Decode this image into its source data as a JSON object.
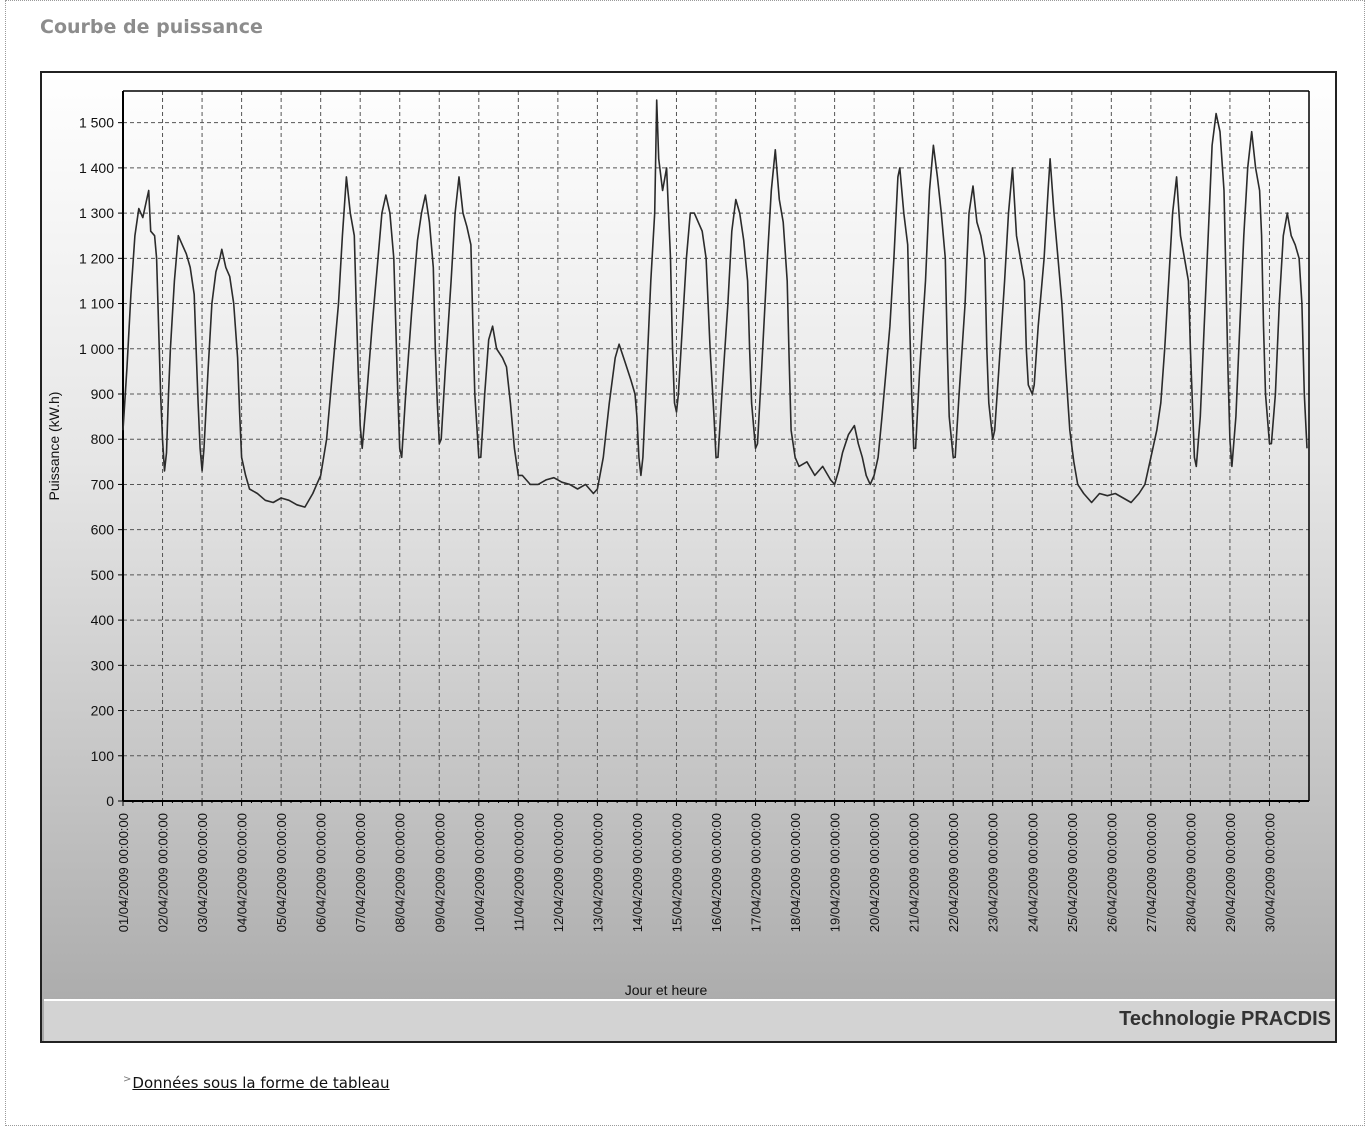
{
  "section_title": "Courbe de puissance",
  "brand": "Technologie PRACDIS",
  "table_link": "Données sous la forme de tableau",
  "chart_data": {
    "type": "line",
    "title": "",
    "xlabel": "Jour et heure",
    "ylabel": "Puissance (kW.h)",
    "ylim": [
      0,
      1570
    ],
    "yticks": [
      0,
      100,
      200,
      300,
      400,
      500,
      600,
      700,
      800,
      900,
      1000,
      1100,
      1200,
      1300,
      1400,
      1500
    ],
    "ytick_labels": [
      "0",
      "100",
      "200",
      "300",
      "400",
      "500",
      "600",
      "700",
      "800",
      "900",
      "1 000",
      "1 100",
      "1 200",
      "1 300",
      "1 400",
      "1 500"
    ],
    "x_categories": [
      "01/04/2009 00:00:00",
      "02/04/2009 00:00:00",
      "03/04/2009 00:00:00",
      "04/04/2009 00:00:00",
      "05/04/2009 00:00:00",
      "06/04/2009 00:00:00",
      "07/04/2009 00:00:00",
      "08/04/2009 00:00:00",
      "09/04/2009 00:00:00",
      "10/04/2009 00:00:00",
      "11/04/2009 00:00:00",
      "12/04/2009 00:00:00",
      "13/04/2009 00:00:00",
      "14/04/2009 00:00:00",
      "15/04/2009 00:00:00",
      "16/04/2009 00:00:00",
      "17/04/2009 00:00:00",
      "18/04/2009 00:00:00",
      "19/04/2009 00:00:00",
      "20/04/2009 00:00:00",
      "21/04/2009 00:00:00",
      "22/04/2009 00:00:00",
      "23/04/2009 00:00:00",
      "24/04/2009 00:00:00",
      "25/04/2009 00:00:00",
      "26/04/2009 00:00:00",
      "27/04/2009 00:00:00",
      "28/04/2009 00:00:00",
      "29/04/2009 00:00:00",
      "30/04/2009 00:00:00"
    ],
    "grid": true,
    "line_color": "#2b2b2b",
    "series": [
      {
        "values": [
          [
            0.0,
            820
          ],
          [
            0.1,
            960
          ],
          [
            0.2,
            1120
          ],
          [
            0.3,
            1250
          ],
          [
            0.4,
            1310
          ],
          [
            0.5,
            1290
          ],
          [
            0.6,
            1330
          ],
          [
            0.65,
            1350
          ],
          [
            0.7,
            1260
          ],
          [
            0.8,
            1250
          ],
          [
            0.85,
            1200
          ],
          [
            0.9,
            1050
          ],
          [
            0.95,
            900
          ],
          [
            1.0,
            800
          ],
          [
            1.05,
            730
          ],
          [
            1.1,
            770
          ],
          [
            1.15,
            900
          ],
          [
            1.2,
            1000
          ],
          [
            1.3,
            1150
          ],
          [
            1.4,
            1250
          ],
          [
            1.5,
            1230
          ],
          [
            1.6,
            1210
          ],
          [
            1.7,
            1180
          ],
          [
            1.8,
            1120
          ],
          [
            1.85,
            1000
          ],
          [
            1.9,
            880
          ],
          [
            1.95,
            780
          ],
          [
            2.0,
            730
          ],
          [
            2.05,
            780
          ],
          [
            2.15,
            950
          ],
          [
            2.25,
            1100
          ],
          [
            2.35,
            1170
          ],
          [
            2.45,
            1200
          ],
          [
            2.5,
            1220
          ],
          [
            2.6,
            1180
          ],
          [
            2.7,
            1160
          ],
          [
            2.8,
            1100
          ],
          [
            2.9,
            980
          ],
          [
            2.95,
            860
          ],
          [
            3.0,
            760
          ],
          [
            3.1,
            720
          ],
          [
            3.2,
            690
          ],
          [
            3.4,
            680
          ],
          [
            3.6,
            665
          ],
          [
            3.8,
            660
          ],
          [
            4.0,
            670
          ],
          [
            4.2,
            665
          ],
          [
            4.4,
            655
          ],
          [
            4.6,
            650
          ],
          [
            4.8,
            680
          ],
          [
            4.9,
            700
          ],
          [
            5.0,
            720
          ],
          [
            5.15,
            800
          ],
          [
            5.3,
            950
          ],
          [
            5.45,
            1100
          ],
          [
            5.55,
            1250
          ],
          [
            5.65,
            1380
          ],
          [
            5.75,
            1300
          ],
          [
            5.85,
            1250
          ],
          [
            5.9,
            1100
          ],
          [
            5.95,
            950
          ],
          [
            6.0,
            830
          ],
          [
            6.05,
            780
          ],
          [
            6.15,
            880
          ],
          [
            6.3,
            1050
          ],
          [
            6.45,
            1200
          ],
          [
            6.55,
            1300
          ],
          [
            6.65,
            1340
          ],
          [
            6.75,
            1300
          ],
          [
            6.85,
            1200
          ],
          [
            6.9,
            1050
          ],
          [
            6.95,
            900
          ],
          [
            7.0,
            780
          ],
          [
            7.05,
            760
          ],
          [
            7.15,
            900
          ],
          [
            7.3,
            1080
          ],
          [
            7.45,
            1240
          ],
          [
            7.55,
            1300
          ],
          [
            7.65,
            1340
          ],
          [
            7.75,
            1280
          ],
          [
            7.85,
            1180
          ],
          [
            7.9,
            1000
          ],
          [
            7.95,
            880
          ],
          [
            8.0,
            790
          ],
          [
            8.05,
            800
          ],
          [
            8.15,
            950
          ],
          [
            8.3,
            1150
          ],
          [
            8.4,
            1300
          ],
          [
            8.5,
            1380
          ],
          [
            8.6,
            1300
          ],
          [
            8.7,
            1270
          ],
          [
            8.8,
            1230
          ],
          [
            8.85,
            1050
          ],
          [
            8.9,
            900
          ],
          [
            9.0,
            760
          ],
          [
            9.05,
            760
          ],
          [
            9.15,
            900
          ],
          [
            9.25,
            1020
          ],
          [
            9.35,
            1050
          ],
          [
            9.45,
            1000
          ],
          [
            9.6,
            980
          ],
          [
            9.7,
            960
          ],
          [
            9.8,
            880
          ],
          [
            9.9,
            780
          ],
          [
            10.0,
            720
          ],
          [
            10.1,
            720
          ],
          [
            10.3,
            700
          ],
          [
            10.5,
            700
          ],
          [
            10.7,
            710
          ],
          [
            10.9,
            715
          ],
          [
            11.1,
            705
          ],
          [
            11.3,
            700
          ],
          [
            11.5,
            690
          ],
          [
            11.7,
            700
          ],
          [
            11.9,
            680
          ],
          [
            12.0,
            690
          ],
          [
            12.15,
            760
          ],
          [
            12.3,
            880
          ],
          [
            12.45,
            980
          ],
          [
            12.55,
            1010
          ],
          [
            12.7,
            970
          ],
          [
            12.85,
            930
          ],
          [
            12.95,
            900
          ],
          [
            13.0,
            850
          ],
          [
            13.05,
            760
          ],
          [
            13.1,
            720
          ],
          [
            13.15,
            760
          ],
          [
            13.25,
            950
          ],
          [
            13.35,
            1150
          ],
          [
            13.45,
            1300
          ],
          [
            13.5,
            1550
          ],
          [
            13.55,
            1420
          ],
          [
            13.65,
            1350
          ],
          [
            13.75,
            1400
          ],
          [
            13.85,
            1200
          ],
          [
            13.9,
            1000
          ],
          [
            13.95,
            880
          ],
          [
            14.0,
            860
          ],
          [
            14.05,
            900
          ],
          [
            14.15,
            1050
          ],
          [
            14.25,
            1200
          ],
          [
            14.35,
            1300
          ],
          [
            14.45,
            1300
          ],
          [
            14.55,
            1280
          ],
          [
            14.65,
            1260
          ],
          [
            14.75,
            1200
          ],
          [
            14.85,
            1000
          ],
          [
            14.95,
            850
          ],
          [
            15.0,
            760
          ],
          [
            15.05,
            760
          ],
          [
            15.15,
            900
          ],
          [
            15.3,
            1100
          ],
          [
            15.4,
            1260
          ],
          [
            15.5,
            1330
          ],
          [
            15.6,
            1300
          ],
          [
            15.7,
            1240
          ],
          [
            15.8,
            1150
          ],
          [
            15.85,
            1000
          ],
          [
            15.9,
            880
          ],
          [
            16.0,
            780
          ],
          [
            16.05,
            790
          ],
          [
            16.15,
            950
          ],
          [
            16.3,
            1200
          ],
          [
            16.4,
            1350
          ],
          [
            16.5,
            1440
          ],
          [
            16.6,
            1330
          ],
          [
            16.7,
            1280
          ],
          [
            16.8,
            1150
          ],
          [
            16.85,
            980
          ],
          [
            16.9,
            820
          ],
          [
            17.0,
            760
          ],
          [
            17.1,
            740
          ],
          [
            17.3,
            750
          ],
          [
            17.5,
            720
          ],
          [
            17.7,
            740
          ],
          [
            17.9,
            710
          ],
          [
            18.0,
            700
          ],
          [
            18.1,
            730
          ],
          [
            18.2,
            770
          ],
          [
            18.35,
            810
          ],
          [
            18.5,
            830
          ],
          [
            18.6,
            790
          ],
          [
            18.7,
            760
          ],
          [
            18.8,
            720
          ],
          [
            18.9,
            700
          ],
          [
            19.0,
            720
          ],
          [
            19.1,
            760
          ],
          [
            19.2,
            850
          ],
          [
            19.3,
            950
          ],
          [
            19.4,
            1050
          ],
          [
            19.5,
            1200
          ],
          [
            19.6,
            1380
          ],
          [
            19.65,
            1400
          ],
          [
            19.75,
            1300
          ],
          [
            19.85,
            1230
          ],
          [
            19.9,
            1050
          ],
          [
            19.95,
            900
          ],
          [
            20.0,
            780
          ],
          [
            20.05,
            780
          ],
          [
            20.15,
            950
          ],
          [
            20.3,
            1150
          ],
          [
            20.4,
            1350
          ],
          [
            20.5,
            1450
          ],
          [
            20.6,
            1380
          ],
          [
            20.7,
            1300
          ],
          [
            20.8,
            1200
          ],
          [
            20.85,
            1000
          ],
          [
            20.9,
            850
          ],
          [
            21.0,
            760
          ],
          [
            21.05,
            760
          ],
          [
            21.15,
            900
          ],
          [
            21.3,
            1100
          ],
          [
            21.4,
            1300
          ],
          [
            21.5,
            1360
          ],
          [
            21.6,
            1280
          ],
          [
            21.7,
            1250
          ],
          [
            21.8,
            1200
          ],
          [
            21.85,
            1000
          ],
          [
            21.9,
            880
          ],
          [
            22.0,
            800
          ],
          [
            22.05,
            820
          ],
          [
            22.15,
            950
          ],
          [
            22.3,
            1150
          ],
          [
            22.4,
            1300
          ],
          [
            22.5,
            1400
          ],
          [
            22.6,
            1250
          ],
          [
            22.7,
            1200
          ],
          [
            22.8,
            1150
          ],
          [
            22.85,
            1000
          ],
          [
            22.9,
            920
          ],
          [
            23.0,
            900
          ],
          [
            23.05,
            920
          ],
          [
            23.15,
            1050
          ],
          [
            23.3,
            1200
          ],
          [
            23.4,
            1350
          ],
          [
            23.45,
            1420
          ],
          [
            23.55,
            1300
          ],
          [
            23.65,
            1200
          ],
          [
            23.75,
            1100
          ],
          [
            23.85,
            950
          ],
          [
            23.95,
            820
          ],
          [
            24.05,
            750
          ],
          [
            24.15,
            700
          ],
          [
            24.3,
            680
          ],
          [
            24.5,
            660
          ],
          [
            24.7,
            680
          ],
          [
            24.9,
            675
          ],
          [
            25.1,
            680
          ],
          [
            25.3,
            670
          ],
          [
            25.5,
            660
          ],
          [
            25.7,
            680
          ],
          [
            25.85,
            700
          ],
          [
            26.0,
            760
          ],
          [
            26.15,
            820
          ],
          [
            26.25,
            880
          ],
          [
            26.35,
            1000
          ],
          [
            26.45,
            1150
          ],
          [
            26.55,
            1300
          ],
          [
            26.65,
            1380
          ],
          [
            26.75,
            1250
          ],
          [
            26.85,
            1200
          ],
          [
            26.95,
            1150
          ],
          [
            27.0,
            1000
          ],
          [
            27.05,
            880
          ],
          [
            27.1,
            760
          ],
          [
            27.15,
            740
          ],
          [
            27.25,
            850
          ],
          [
            27.35,
            1050
          ],
          [
            27.45,
            1250
          ],
          [
            27.55,
            1450
          ],
          [
            27.65,
            1520
          ],
          [
            27.75,
            1480
          ],
          [
            27.85,
            1350
          ],
          [
            27.9,
            1150
          ],
          [
            27.95,
            950
          ],
          [
            28.0,
            800
          ],
          [
            28.05,
            740
          ],
          [
            28.15,
            850
          ],
          [
            28.25,
            1050
          ],
          [
            28.35,
            1250
          ],
          [
            28.45,
            1400
          ],
          [
            28.55,
            1480
          ],
          [
            28.65,
            1400
          ],
          [
            28.75,
            1350
          ],
          [
            28.8,
            1250
          ],
          [
            28.85,
            1050
          ],
          [
            28.9,
            900
          ],
          [
            29.0,
            790
          ],
          [
            29.05,
            790
          ],
          [
            29.15,
            900
          ],
          [
            29.25,
            1100
          ],
          [
            29.35,
            1250
          ],
          [
            29.45,
            1300
          ],
          [
            29.55,
            1250
          ],
          [
            29.65,
            1230
          ],
          [
            29.75,
            1200
          ],
          [
            29.82,
            1100
          ],
          [
            29.88,
            900
          ],
          [
            29.95,
            780
          ]
        ]
      }
    ]
  }
}
